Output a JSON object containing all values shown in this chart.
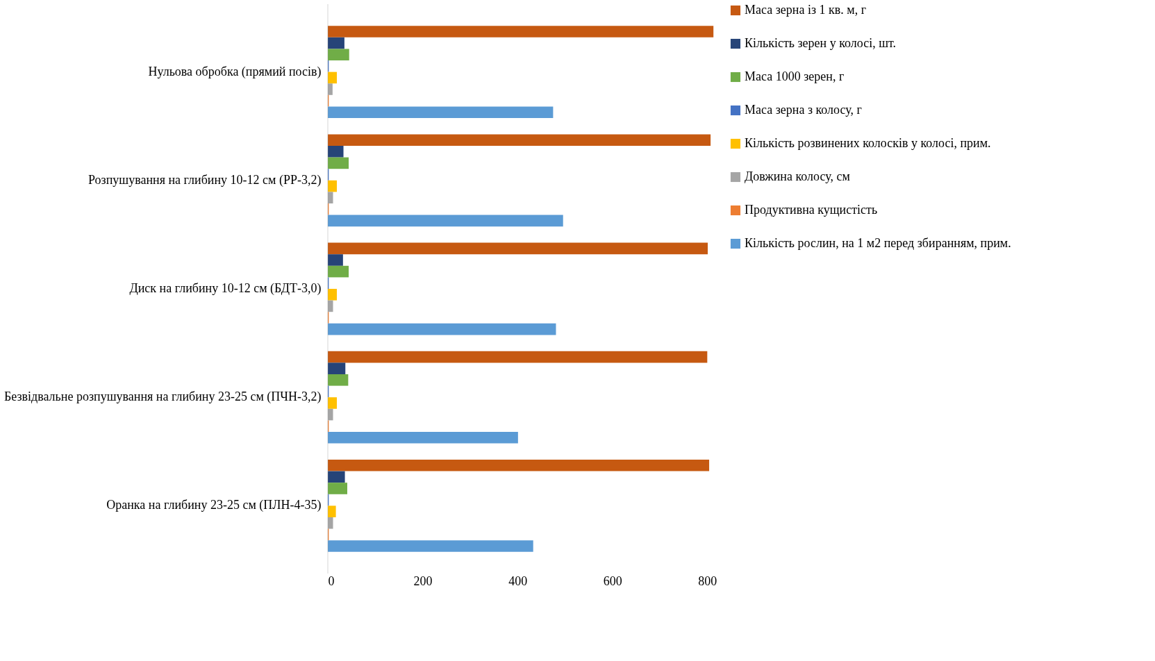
{
  "chart_data": {
    "type": "bar",
    "orientation": "horizontal",
    "categories": [
      "Нульова обробка (прямий посів)",
      "Розпушування на глибину 10-12 см (РР-3,2)",
      "Диск на глибину 10-12 см (БДТ-3,0)",
      "Безвідвальне розпушування на глибину 23-25 см (ПЧН-3,2)",
      "Оранка на глибину 23-25 см (ПЛН-4-35)"
    ],
    "series": [
      {
        "name": "Маса зерна із 1 кв. м, г",
        "color": "#c65911",
        "values": [
          813,
          807,
          801,
          800,
          804
        ]
      },
      {
        "name": "Кількість зерен у колосі, шт.",
        "color": "#264478",
        "values": [
          35,
          33,
          32,
          37,
          36
        ]
      },
      {
        "name": "Маса 1000 зерен, г",
        "color": "#70ad47",
        "values": [
          45,
          44,
          44,
          43,
          41
        ]
      },
      {
        "name": "Маса зерна з колосу, г",
        "color": "#4472c4",
        "values": [
          2,
          2,
          2,
          2,
          2
        ]
      },
      {
        "name": "Кількість розвинених колосків у колосі, прим.",
        "color": "#ffc000",
        "values": [
          19,
          19,
          19,
          19,
          17
        ]
      },
      {
        "name": "Довжина колосу, см",
        "color": "#a5a5a5",
        "values": [
          10,
          11,
          11,
          11,
          11
        ]
      },
      {
        "name": "Продуктивна кущистість",
        "color": "#ed7d31",
        "values": [
          2,
          2,
          2,
          2,
          2
        ]
      },
      {
        "name": "Кількість рослин, на 1 м2 перед збиранням, прим.",
        "color": "#5b9bd5",
        "values": [
          475,
          496,
          481,
          401,
          433
        ]
      }
    ],
    "xlim": [
      0,
      820
    ],
    "xticks": [
      0,
      200,
      400,
      600,
      800
    ],
    "grid": false,
    "legend": "right"
  }
}
